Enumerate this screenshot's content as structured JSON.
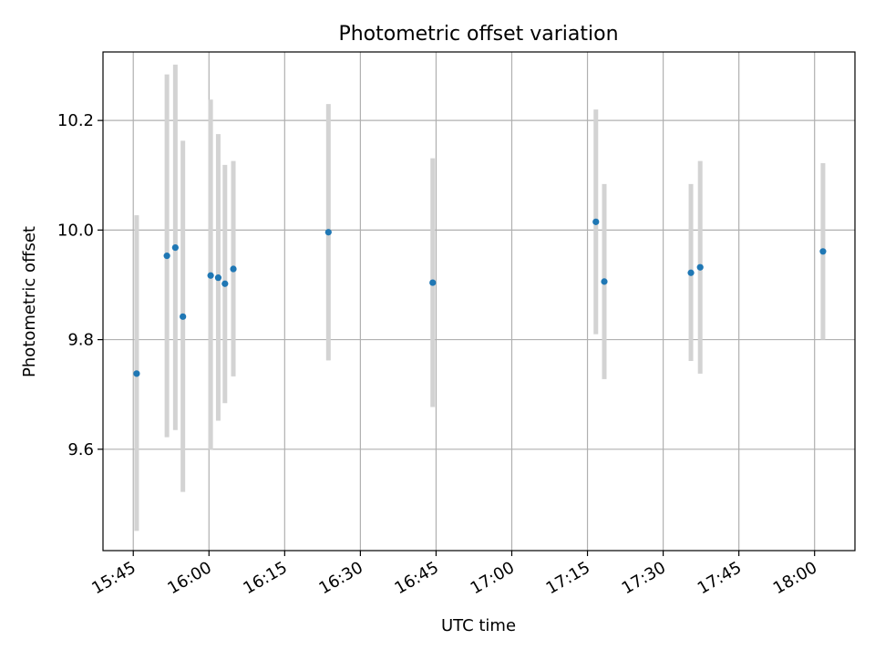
{
  "chart_data": {
    "type": "scatter",
    "title": "Photometric offset variation",
    "xlabel": "UTC time",
    "ylabel": "Photometric offset",
    "xlim": [
      "15:39",
      "18:08"
    ],
    "ylim": [
      9.415,
      10.325
    ],
    "x_ticks": [
      "15:45",
      "16:00",
      "16:15",
      "16:30",
      "16:45",
      "17:00",
      "17:15",
      "17:30",
      "17:45",
      "18:00"
    ],
    "y_ticks": [
      9.6,
      9.8,
      10.0,
      10.2
    ],
    "y_tick_labels": [
      "9.6",
      "9.8",
      "10.0",
      "10.2"
    ],
    "grid": true,
    "point_color": "#1f77b4",
    "errorbar_color": "#d3d3d3",
    "points": [
      {
        "x": "15:45:40",
        "y": 9.738,
        "y_low": 9.451,
        "y_high": 10.027
      },
      {
        "x": "15:51:40",
        "y": 9.953,
        "y_low": 9.622,
        "y_high": 10.284
      },
      {
        "x": "15:53:20",
        "y": 9.968,
        "y_low": 9.635,
        "y_high": 10.302
      },
      {
        "x": "15:54:50",
        "y": 9.842,
        "y_low": 9.522,
        "y_high": 10.163
      },
      {
        "x": "16:00:20",
        "y": 9.917,
        "y_low": 9.599,
        "y_high": 10.238
      },
      {
        "x": "16:01:50",
        "y": 9.913,
        "y_low": 9.652,
        "y_high": 10.175
      },
      {
        "x": "16:03:10",
        "y": 9.902,
        "y_low": 9.684,
        "y_high": 10.119
      },
      {
        "x": "16:04:50",
        "y": 9.929,
        "y_low": 9.733,
        "y_high": 10.126
      },
      {
        "x": "16:23:40",
        "y": 9.996,
        "y_low": 9.762,
        "y_high": 10.23
      },
      {
        "x": "16:44:20",
        "y": 9.904,
        "y_low": 9.677,
        "y_high": 10.131
      },
      {
        "x": "17:16:40",
        "y": 10.015,
        "y_low": 9.81,
        "y_high": 10.22
      },
      {
        "x": "17:18:20",
        "y": 9.906,
        "y_low": 9.728,
        "y_high": 10.084
      },
      {
        "x": "17:35:30",
        "y": 9.922,
        "y_low": 9.761,
        "y_high": 10.084
      },
      {
        "x": "17:37:20",
        "y": 9.932,
        "y_low": 9.738,
        "y_high": 10.126
      },
      {
        "x": "18:01:40",
        "y": 9.961,
        "y_low": 9.8,
        "y_high": 10.122
      }
    ]
  }
}
